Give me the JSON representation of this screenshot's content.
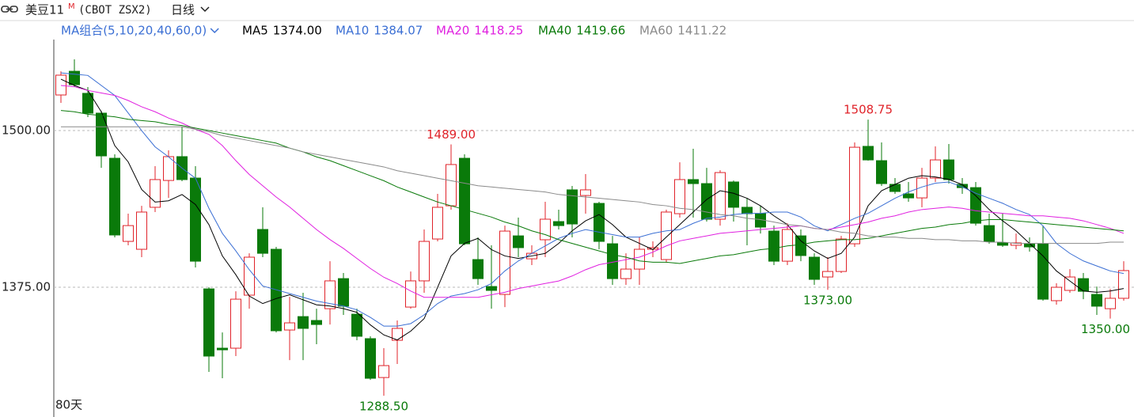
{
  "header": {
    "symbol": "美豆11",
    "superscript": "M",
    "code": "(CBOT ZSX2)",
    "period": "日线"
  },
  "chart_data": {
    "type": "candlestick",
    "ma_group_label": "MA组合(5,10,20,40,60,0)",
    "period_label": "80天",
    "up_color": "#e0232a",
    "down_color": "#0a7a0a",
    "grid": true,
    "ylim": [
      1271.5,
      1572.6
    ],
    "yticks": [
      {
        "value": 1375,
        "label": "1375.00"
      },
      {
        "value": 1500,
        "label": "1500.00"
      }
    ],
    "open": [
      1528.4,
      1547.3,
      1529.7,
      1513.9,
      1477.9,
      1411.6,
      1405.3,
      1438.8,
      1460.2,
      1479.2,
      1462.1,
      1373.7,
      1326.4,
      1326.4,
      1368.7,
      1421.1,
      1405.3,
      1340.9,
      1351.6,
      1348.5,
      1357.9,
      1381.9,
      1353.5,
      1334.0,
      1303.0,
      1332.7,
      1359.2,
      1380.1,
      1413.5,
      1440.0,
      1477.9,
      1397.1,
      1375.6,
      1369.3,
      1416.0,
      1397.7,
      1412.9,
      1427.4,
      1452.7,
      1448.2,
      1441.9,
      1409.7,
      1381.9,
      1389.5,
      1405.3,
      1397.1,
      1433.7,
      1460.9,
      1457.7,
      1429.3,
      1459.0,
      1438.8,
      1433.7,
      1419.8,
      1395.8,
      1416.0,
      1399.0,
      1383.2,
      1387.6,
      1409.7,
      1487.4,
      1476.0,
      1457.1,
      1449.5,
      1446.3,
      1462.1,
      1476.6,
      1457.1,
      1454.5,
      1424.2,
      1410.4,
      1408.5,
      1409.7,
      1409.7,
      1364.3,
      1372.5,
      1381.9,
      1369.3,
      1357.9,
      1366.2
    ],
    "high": [
      1547.3,
      1556.8,
      1534.7,
      1515.8,
      1481.1,
      1433.7,
      1440.0,
      1471.6,
      1484.2,
      1503.2,
      1471.6,
      1375.0,
      1339.0,
      1371.8,
      1402.1,
      1438.8,
      1407.2,
      1367.4,
      1370.6,
      1357.9,
      1395.8,
      1386.4,
      1357.9,
      1335.9,
      1326.4,
      1348.5,
      1387.6,
      1421.1,
      1449.5,
      1489,
      1481.1,
      1414.8,
      1408.5,
      1424.2,
      1430.6,
      1408.5,
      1443.2,
      1436.9,
      1455.8,
      1465.3,
      1443.2,
      1416.0,
      1402.1,
      1414.8,
      1411.6,
      1436.9,
      1474.7,
      1485.5,
      1470.3,
      1468.4,
      1460.2,
      1446.3,
      1440.0,
      1424.2,
      1426.1,
      1421.1,
      1402.1,
      1399.0,
      1416.0,
      1490.5,
      1508.75,
      1490.5,
      1462.1,
      1459.0,
      1470.3,
      1487.4,
      1489.3,
      1462.1,
      1459.0,
      1433.7,
      1433.7,
      1417.9,
      1414.8,
      1424.2,
      1378.2,
      1389.5,
      1386.4,
      1375.6,
      1373.7,
      1395.8
    ],
    "low": [
      1522.1,
      1534.7,
      1510.7,
      1470.3,
      1414.8,
      1408.5,
      1399.0,
      1435.0,
      1446.3,
      1459.6,
      1390.8,
      1307.5,
      1302.4,
      1320.1,
      1357.9,
      1399.0,
      1339.0,
      1316.9,
      1316.9,
      1329.6,
      1345.3,
      1352.9,
      1332.7,
      1301.1,
      1288.5,
      1313.8,
      1357.9,
      1370.6,
      1411.6,
      1436.9,
      1408.5,
      1376.9,
      1357.9,
      1359.2,
      1399.0,
      1392.7,
      1399.0,
      1421.1,
      1414.8,
      1433.7,
      1405.3,
      1376.9,
      1376.9,
      1376.9,
      1399.0,
      1394.6,
      1430.6,
      1430.6,
      1427.4,
      1424.2,
      1427.4,
      1408.5,
      1417.9,
      1392.7,
      1392.7,
      1395.8,
      1376.9,
      1373,
      1386.4,
      1407.2,
      1476.0,
      1455.8,
      1449.5,
      1443.2,
      1438.8,
      1459.0,
      1457.7,
      1449.5,
      1424.2,
      1409.7,
      1407.2,
      1405.3,
      1403.4,
      1364.3,
      1361.1,
      1370.6,
      1365.5,
      1352.9,
      1350,
      1364.3
    ],
    "close": [
      1544.2,
      1536.6,
      1513.9,
      1479.8,
      1416.7,
      1424.2,
      1435.0,
      1460.9,
      1479.2,
      1460.9,
      1395.8,
      1320.1,
      1325.1,
      1365.5,
      1399.0,
      1402.1,
      1340.3,
      1346.6,
      1342.2,
      1345.3,
      1380.1,
      1359.9,
      1335.9,
      1302.4,
      1312.5,
      1342.2,
      1380.1,
      1411.6,
      1438.8,
      1472.9,
      1409.7,
      1381.9,
      1372.5,
      1419.8,
      1406.6,
      1402.1,
      1429.3,
      1424.2,
      1425.5,
      1452.7,
      1411.6,
      1381.9,
      1389.5,
      1405.3,
      1406.6,
      1435.0,
      1460.9,
      1457.7,
      1429.3,
      1466.5,
      1438.8,
      1433.7,
      1423.0,
      1395.8,
      1421.1,
      1400.3,
      1381.3,
      1387.6,
      1413.5,
      1486.7,
      1476.6,
      1457.7,
      1451.4,
      1446.3,
      1462.1,
      1476.6,
      1460.9,
      1454.5,
      1426.1,
      1411.6,
      1408.5,
      1410.4,
      1407.2,
      1365.5,
      1375.0,
      1383.2,
      1371.8,
      1359.9,
      1366.2,
      1388.3
    ],
    "series": [
      {
        "name": "MA5",
        "legend_value": "1374.00",
        "color": "#000000",
        "values": [
          1541,
          1536,
          1532,
          1515,
          1488,
          1475,
          1453,
          1443,
          1444,
          1449,
          1441,
          1425,
          1400,
          1385,
          1368,
          1362,
          1366,
          1369,
          1365,
          1361,
          1360,
          1358,
          1355,
          1345,
          1337,
          1333,
          1340,
          1350,
          1375,
          1400,
          1410,
          1414,
          1405,
          1400,
          1398,
          1400,
          1402,
          1410,
          1420,
          1428,
          1433,
          1425,
          1415,
          1410,
          1405,
          1415,
          1425,
          1435,
          1445,
          1452,
          1450,
          1446,
          1440,
          1432,
          1425,
          1412,
          1404,
          1398,
          1402,
          1415,
          1440,
          1452,
          1457,
          1462,
          1464,
          1463,
          1461,
          1457,
          1448,
          1437,
          1428,
          1420,
          1410,
          1400,
          1388,
          1380,
          1372,
          1371,
          1372,
          1374
        ]
      },
      {
        "name": "MA10",
        "legend_value": "1384.07",
        "color": "#3b6fd4",
        "values": [
          1546,
          1545,
          1544,
          1536,
          1528,
          1514,
          1500,
          1487,
          1479,
          1470,
          1462,
          1438,
          1418,
          1404,
          1389,
          1376,
          1373,
          1370,
          1367,
          1364,
          1362,
          1360,
          1357,
          1351,
          1344,
          1344,
          1346,
          1353,
          1362,
          1368,
          1370,
          1373,
          1378,
          1388,
          1396,
          1402,
          1408,
          1414,
          1418,
          1421,
          1419,
          1417,
          1415,
          1415,
          1418,
          1420,
          1421,
          1426,
          1430,
          1431,
          1433,
          1434,
          1434,
          1435,
          1435,
          1431,
          1424,
          1420,
          1425,
          1430,
          1434,
          1440,
          1446,
          1451,
          1455,
          1458,
          1459,
          1455,
          1450,
          1446,
          1442,
          1437,
          1433,
          1424,
          1410,
          1402,
          1396,
          1392,
          1388,
          1386
        ]
      },
      {
        "name": "MA20",
        "legend_value": "1418.25",
        "color": "#e020e0",
        "values": [
          1536,
          1535,
          1532,
          1530,
          1528,
          1524,
          1519,
          1515,
          1510,
          1506,
          1501,
          1497,
          1488,
          1476,
          1465,
          1456,
          1447,
          1439,
          1430,
          1421,
          1413,
          1406,
          1398,
          1390,
          1383,
          1378,
          1372,
          1367,
          1367,
          1367,
          1367,
          1367,
          1369,
          1371,
          1374,
          1376,
          1378,
          1380,
          1384,
          1389,
          1393,
          1395,
          1397,
          1399,
          1403,
          1408,
          1412,
          1414,
          1416,
          1418,
          1419,
          1420,
          1421,
          1422,
          1423,
          1424,
          1422,
          1421,
          1423,
          1425,
          1427,
          1430,
          1432,
          1435,
          1437,
          1438,
          1439,
          1438,
          1436,
          1435,
          1434,
          1433,
          1432,
          1432,
          1431,
          1430,
          1428,
          1425,
          1422,
          1418
        ]
      },
      {
        "name": "MA40",
        "legend_value": "1419.66",
        "color": "#0a7a0a",
        "values": [
          1516,
          1515,
          1513,
          1512,
          1511,
          1509,
          1508,
          1507,
          1505,
          1504,
          1502,
          1500,
          1498,
          1496,
          1494,
          1492,
          1490,
          1486,
          1483,
          1479,
          1476,
          1472,
          1468,
          1464,
          1460,
          1455,
          1451,
          1447,
          1443,
          1440,
          1437,
          1434,
          1431,
          1427,
          1424,
          1420,
          1417,
          1413,
          1410,
          1407,
          1404,
          1401,
          1399,
          1396,
          1395,
          1395,
          1394,
          1396,
          1398,
          1400,
          1401,
          1403,
          1405,
          1406,
          1408,
          1409,
          1411,
          1412,
          1413,
          1413,
          1414,
          1416,
          1418,
          1420,
          1422,
          1423,
          1425,
          1426,
          1428,
          1429,
          1429,
          1428,
          1427,
          1426,
          1425,
          1424,
          1423,
          1422,
          1421,
          1420
        ]
      },
      {
        "name": "MA60",
        "legend_value": "1411.22",
        "color": "#8a8a8a",
        "values": [
          1503,
          1503,
          1503,
          1503,
          1503,
          1503,
          1503,
          1503,
          1503,
          1503,
          1501,
          1499,
          1496,
          1494,
          1492,
          1490,
          1488,
          1486,
          1483,
          1481,
          1479,
          1477,
          1475,
          1473,
          1471,
          1468,
          1466,
          1464,
          1462,
          1460,
          1458,
          1456,
          1455,
          1454,
          1453,
          1452,
          1451,
          1449,
          1448,
          1447,
          1446,
          1445,
          1444,
          1443,
          1441,
          1440,
          1438,
          1437,
          1435,
          1433,
          1432,
          1430,
          1429,
          1427,
          1425,
          1424,
          1422,
          1421,
          1419,
          1418,
          1416,
          1415,
          1415,
          1414,
          1414,
          1413,
          1413,
          1412,
          1412,
          1411,
          1411,
          1410,
          1410,
          1410,
          1410,
          1410,
          1410,
          1410,
          1411,
          1411
        ]
      }
    ],
    "annotations": [
      {
        "label": "1489.00",
        "value": 1489
      },
      {
        "label": "1508.75",
        "value": 1508.75
      },
      {
        "label": "1373.00",
        "value": 1373
      },
      {
        "label": "1288.50",
        "value": 1288.5
      },
      {
        "label": "1350.00",
        "value": 1350
      }
    ]
  }
}
